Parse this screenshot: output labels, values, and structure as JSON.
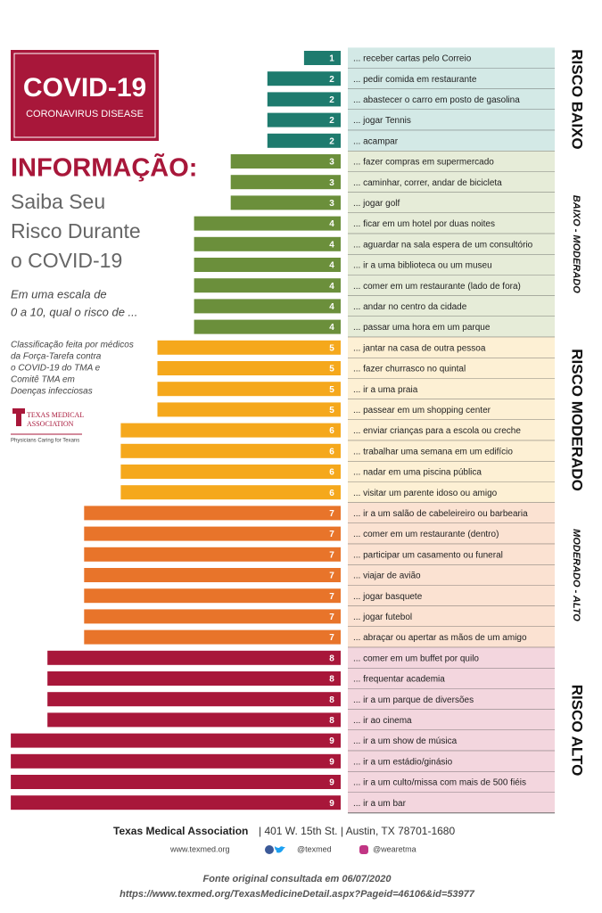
{
  "chart_data": {
    "type": "bar",
    "badge": {
      "title": "COVID-19",
      "subtitle": "CORONAVIRUS DISEASE"
    },
    "heading": "INFORMAÇÃO:",
    "subheading": [
      "Saiba Seu",
      "Risco Durante",
      "o COVID-19"
    ],
    "question": [
      "Em uma escala de",
      "0 a 10, qual o risco de ..."
    ],
    "note": [
      "Classificação feita por médicos",
      "da Força-Tarefa contra",
      "o COVID-19 do TMA e",
      "Comitê TMA em",
      "Doenças infecciosas"
    ],
    "logo": {
      "name": [
        "TEXAS MEDICAL",
        "ASSOCIATION"
      ],
      "tagline": "Physicians Caring for Texans"
    },
    "groups": [
      {
        "name": "RISCO BAIXO",
        "color": "#1e7b6e",
        "bg": "#d3e9e6",
        "categories": [
          "... receber cartas pelo Correio",
          "... pedir comida em restaurante",
          "... abastecer o carro em posto de gasolina",
          "... jogar Tennis",
          "... acampar"
        ],
        "values": [
          1,
          2,
          2,
          2,
          2
        ]
      },
      {
        "name": "BAIXO - MODERADO",
        "color": "#6b8f3b",
        "bg": "#e6ecd8",
        "categories": [
          "... fazer compras em supermercado",
          "... caminhar, correr, andar de bicicleta",
          "... jogar golf",
          "... ficar em um hotel por duas noites",
          "... aguardar na sala espera de um consultório",
          "... ir a uma biblioteca ou um museu",
          "... comer em um restaurante (lado de fora)",
          "... andar no centro da cidade",
          "... passar uma hora em um parque"
        ],
        "values": [
          3,
          3,
          3,
          4,
          4,
          4,
          4,
          4,
          4
        ]
      },
      {
        "name": "RISCO MODERADO",
        "color": "#f5a81c",
        "bg": "#fdf0d4",
        "categories": [
          "... jantar na casa de outra pessoa",
          "... fazer churrasco no quintal",
          "... ir a uma praia",
          "... passear em um shopping center",
          "... enviar crianças para a escola ou creche",
          "... trabalhar uma semana em um edifício",
          "... nadar em uma piscina pública",
          "... visitar um parente idoso ou amigo"
        ],
        "values": [
          5,
          5,
          5,
          5,
          6,
          6,
          6,
          6
        ]
      },
      {
        "name": "MODERADO - ALTO",
        "color": "#e8742a",
        "bg": "#fbe2d2",
        "categories": [
          "... ir a um salão de cabeleireiro ou barbearia",
          "... comer em um restaurante (dentro)",
          "... participar um casamento ou funeral",
          "... viajar de avião",
          "... jogar basquete",
          "... jogar futebol",
          "... abraçar ou apertar as mãos de um amigo"
        ],
        "values": [
          7,
          7,
          7,
          7,
          7,
          7,
          7
        ]
      },
      {
        "name": "RISCO ALTO",
        "color": "#a8173a",
        "bg": "#f3d6de",
        "categories": [
          "... comer em um buffet por quilo",
          "... frequentar academia",
          "... ir a um parque de diversões",
          "... ir ao cinema",
          "... ir a um show de música",
          "... ir a um estádio/ginásio",
          "... ir a um culto/missa com mais de 500 fiéis",
          "... ir a um bar"
        ],
        "values": [
          8,
          8,
          8,
          8,
          9,
          9,
          9,
          9
        ]
      }
    ],
    "footer": {
      "org": "Texas Medical Association",
      "address": "| 401 W. 15th St.  |  Austin, TX 78701-1680",
      "web": "www.texmed.org",
      "twitter": "@texmed",
      "instagram": "@wearetma"
    },
    "source": [
      "Fonte original consultada em 06/07/2020",
      "https://www.texmed.org/TexasMedicineDetail.aspx?Pageid=46106&id=53977"
    ]
  }
}
